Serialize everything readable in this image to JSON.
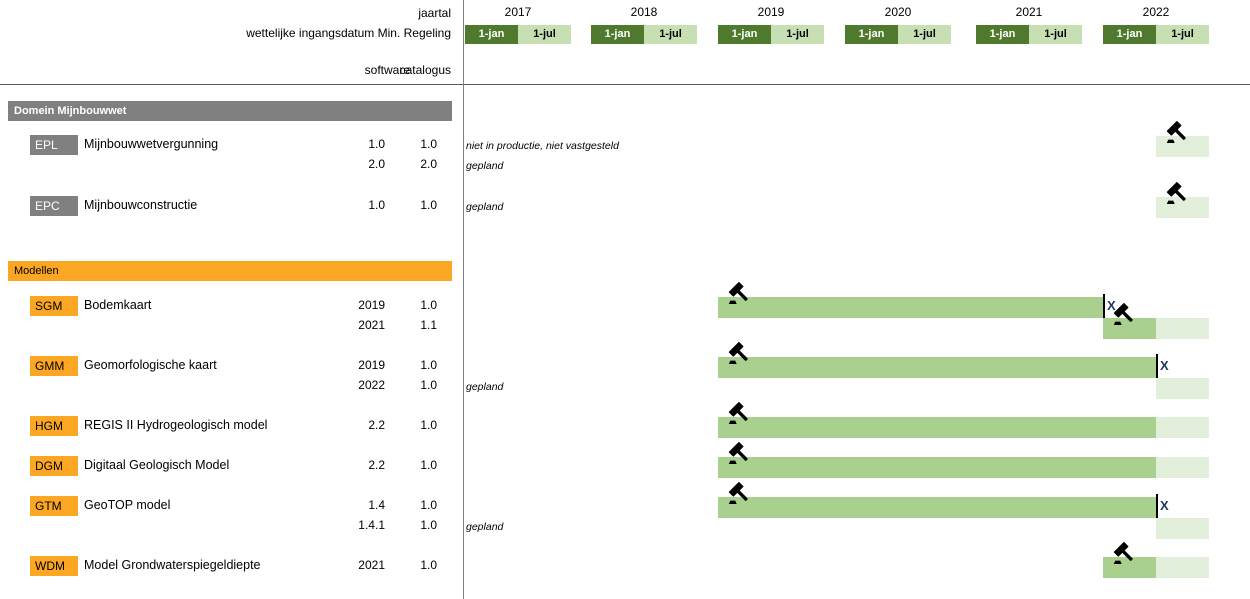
{
  "header": {
    "jaartal_label": "jaartal",
    "regeling_label": "wettelijke ingangsdatum Min. Regeling",
    "software_label": "software",
    "catalogus_label": "catalogus",
    "years": [
      "2017",
      "2018",
      "2019",
      "2020",
      "2021",
      "2022"
    ],
    "half_labels": [
      "1-jan",
      "1-jul"
    ]
  },
  "colors": {
    "dark_green": "#4F7A2D",
    "header_light_green": "#C6E0B4",
    "bar_green": "#A9D08E",
    "bar_light_green": "#E2EFDA",
    "section_gray": "#808080",
    "section_orange": "#FCA724",
    "x_marker_blue": "#1F3864",
    "divider_gray": "#808080"
  },
  "chart_data": {
    "type": "gantt",
    "title": "",
    "x_axis": {
      "unit": "year",
      "range": [
        2017.0,
        2023.0
      ],
      "subdivision": "half-year",
      "tick_labels_per_year": [
        "1-jan",
        "1-jul"
      ]
    },
    "x_marker_label": "X",
    "column_headers": {
      "col1": "software",
      "col2": "catalogus"
    },
    "sections": [
      {
        "title": "Domein Mijnbouwwet",
        "theme": "gray",
        "rows": [
          {
            "code": "EPL",
            "name": "Mijnbouwwetvergunning",
            "versions": [
              {
                "software": "1.0",
                "catalogus": "1.0",
                "note": "niet in productie, niet vastgesteld"
              },
              {
                "software": "2.0",
                "catalogus": "2.0",
                "note": "gepland",
                "bar": {
                  "lane": 0,
                  "segments": [
                    {
                      "start": 2022.5,
                      "end": 2023.0,
                      "shade": "light"
                    }
                  ],
                  "gavel_at": 2022.5
                }
              }
            ]
          },
          {
            "code": "EPC",
            "name": "Mijnbouwconstructie",
            "versions": [
              {
                "software": "1.0",
                "catalogus": "1.0",
                "note": "gepland",
                "bar": {
                  "lane": 0,
                  "segments": [
                    {
                      "start": 2022.5,
                      "end": 2023.0,
                      "shade": "light"
                    }
                  ],
                  "gavel_at": 2022.5
                }
              }
            ]
          }
        ]
      },
      {
        "title": "Modellen",
        "theme": "orange",
        "rows": [
          {
            "code": "SGM",
            "name": "Bodemkaart",
            "versions": [
              {
                "software": "2019",
                "catalogus": "1.0",
                "bar": {
                  "segments": [
                    {
                      "start": 2019.0,
                      "end": 2022.0,
                      "shade": "solid"
                    }
                  ],
                  "gavel_at": 2019.0,
                  "x_marker_at": 2022.0
                }
              },
              {
                "software": "2021",
                "catalogus": "1.1",
                "bar": {
                  "segments": [
                    {
                      "start": 2022.0,
                      "end": 2022.5,
                      "shade": "solid"
                    },
                    {
                      "start": 2022.5,
                      "end": 2023.0,
                      "shade": "light"
                    }
                  ],
                  "gavel_at": 2022.0
                }
              }
            ]
          },
          {
            "code": "GMM",
            "name": "Geomorfologische kaart",
            "versions": [
              {
                "software": "2019",
                "catalogus": "1.0",
                "bar": {
                  "segments": [
                    {
                      "start": 2019.0,
                      "end": 2022.5,
                      "shade": "solid"
                    }
                  ],
                  "gavel_at": 2019.0,
                  "x_marker_at": 2022.5
                }
              },
              {
                "software": "2022",
                "catalogus": "1.0",
                "note": "gepland",
                "bar": {
                  "segments": [
                    {
                      "start": 2022.5,
                      "end": 2023.0,
                      "shade": "light"
                    }
                  ]
                }
              }
            ]
          },
          {
            "code": "HGM",
            "name": "REGIS II Hydrogeologisch model",
            "versions": [
              {
                "software": "2.2",
                "catalogus": "1.0",
                "bar": {
                  "segments": [
                    {
                      "start": 2019.0,
                      "end": 2022.5,
                      "shade": "solid"
                    },
                    {
                      "start": 2022.5,
                      "end": 2023.0,
                      "shade": "light"
                    }
                  ],
                  "gavel_at": 2019.0
                }
              }
            ]
          },
          {
            "code": "DGM",
            "name": "Digitaal Geologisch Model",
            "versions": [
              {
                "software": "2.2",
                "catalogus": "1.0",
                "bar": {
                  "segments": [
                    {
                      "start": 2019.0,
                      "end": 2022.5,
                      "shade": "solid"
                    },
                    {
                      "start": 2022.5,
                      "end": 2023.0,
                      "shade": "light"
                    }
                  ],
                  "gavel_at": 2019.0
                }
              }
            ]
          },
          {
            "code": "GTM",
            "name": "GeoTOP model",
            "versions": [
              {
                "software": "1.4",
                "catalogus": "1.0",
                "bar": {
                  "segments": [
                    {
                      "start": 2019.0,
                      "end": 2022.5,
                      "shade": "solid"
                    }
                  ],
                  "gavel_at": 2019.0,
                  "x_marker_at": 2022.5
                }
              },
              {
                "software": "1.4.1",
                "catalogus": "1.0",
                "note": "gepland",
                "bar": {
                  "segments": [
                    {
                      "start": 2022.5,
                      "end": 2023.0,
                      "shade": "light"
                    }
                  ]
                }
              }
            ]
          },
          {
            "code": "WDM",
            "name": "Model Grondwaterspiegeldiepte",
            "versions": [
              {
                "software": "2021",
                "catalogus": "1.0",
                "bar": {
                  "segments": [
                    {
                      "start": 2022.0,
                      "end": 2022.5,
                      "shade": "solid"
                    },
                    {
                      "start": 2022.5,
                      "end": 2023.0,
                      "shade": "light"
                    }
                  ],
                  "gavel_at": 2022.0
                }
              }
            ]
          }
        ]
      }
    ]
  }
}
